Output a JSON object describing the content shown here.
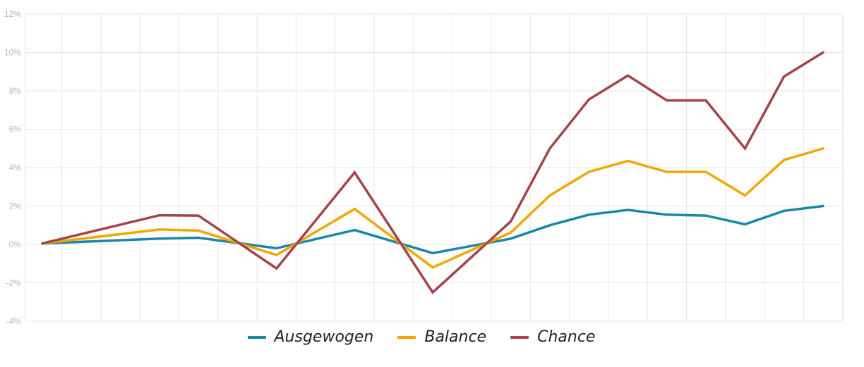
{
  "chart_data": {
    "type": "line",
    "x_count": 21,
    "ylim": [
      -4,
      12
    ],
    "yticks": [
      -4,
      -2,
      0,
      2,
      4,
      6,
      8,
      10,
      12
    ],
    "ytick_labels": [
      "-4%",
      "-2%",
      "0%",
      "2%",
      "4%",
      "6%",
      "8%",
      "10%",
      "12%"
    ],
    "grid": true,
    "legend_position": "bottom-center",
    "series": [
      {
        "name": "Ausgewogen",
        "color": "#1a86a8",
        "points": [
          [
            0,
            0.05
          ],
          [
            3,
            0.3
          ],
          [
            4,
            0.35
          ],
          [
            6,
            -0.2
          ],
          [
            8,
            0.75
          ],
          [
            10,
            -0.45
          ],
          [
            12,
            0.3
          ],
          [
            13,
            1.0
          ],
          [
            14,
            1.55
          ],
          [
            15,
            1.8
          ],
          [
            16,
            1.55
          ],
          [
            17,
            1.5
          ],
          [
            18,
            1.05
          ],
          [
            19,
            1.75
          ],
          [
            20,
            2.0
          ]
        ]
      },
      {
        "name": "Balance",
        "color": "#f0a800",
        "points": [
          [
            0,
            0.05
          ],
          [
            3,
            0.78
          ],
          [
            4,
            0.72
          ],
          [
            6,
            -0.55
          ],
          [
            8,
            1.85
          ],
          [
            10,
            -1.2
          ],
          [
            12,
            0.62
          ],
          [
            13,
            2.55
          ],
          [
            14,
            3.78
          ],
          [
            15,
            4.35
          ],
          [
            16,
            3.78
          ],
          [
            17,
            3.78
          ],
          [
            18,
            2.55
          ],
          [
            19,
            4.4
          ],
          [
            20,
            5.0
          ]
        ]
      },
      {
        "name": "Chance",
        "color": "#a5434a",
        "points": [
          [
            0,
            0.05
          ],
          [
            3,
            1.52
          ],
          [
            4,
            1.5
          ],
          [
            6,
            -1.25
          ],
          [
            8,
            3.75
          ],
          [
            10,
            -2.5
          ],
          [
            12,
            1.2
          ],
          [
            13,
            5.0
          ],
          [
            14,
            7.55
          ],
          [
            15,
            8.8
          ],
          [
            16,
            7.5
          ],
          [
            17,
            7.5
          ],
          [
            18,
            5.0
          ],
          [
            19,
            8.75
          ],
          [
            20,
            10.0
          ]
        ]
      }
    ]
  },
  "legend": {
    "items": [
      {
        "label": "Ausgewogen",
        "color": "#1a86a8"
      },
      {
        "label": "Balance",
        "color": "#f0a800"
      },
      {
        "label": "Chance",
        "color": "#a5434a"
      }
    ]
  }
}
